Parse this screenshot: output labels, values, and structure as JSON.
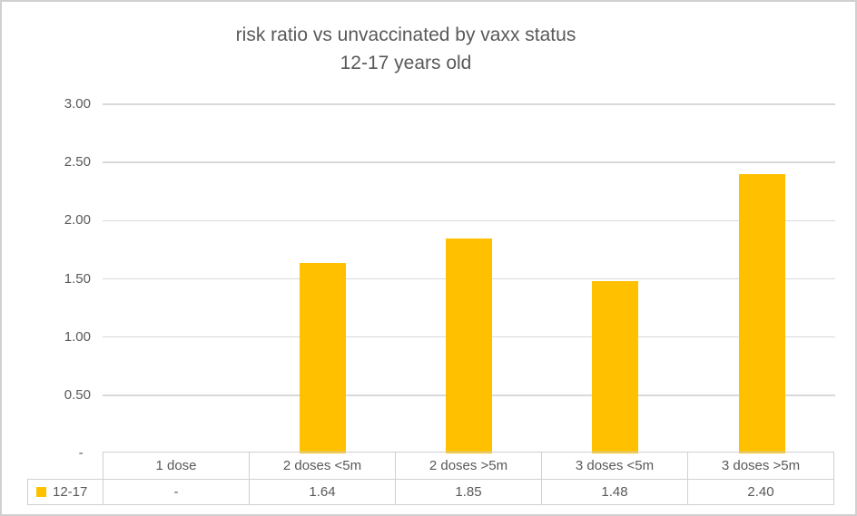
{
  "chart_data": {
    "type": "bar",
    "title": "risk ratio vs unvaccinated by vaxx status",
    "subtitle": "12-17 years old",
    "categories": [
      "1 dose",
      "2 doses <5m",
      "2 doses >5m",
      "3 doses <5m",
      "3 doses >5m"
    ],
    "series": [
      {
        "name": "12-17",
        "color": "#FFC000",
        "values": [
          null,
          1.64,
          1.85,
          1.48,
          2.4
        ],
        "display_values": [
          "-",
          "1.64",
          "1.85",
          "1.48",
          "2.40"
        ]
      }
    ],
    "ylim": [
      0,
      3.0
    ],
    "ytick_step": 0.5,
    "yticks": [
      {
        "value": 0,
        "label": "-  "
      },
      {
        "value": 0.5,
        "label": "0.50"
      },
      {
        "value": 1,
        "label": "1.00"
      },
      {
        "value": 1.5,
        "label": "1.50"
      },
      {
        "value": 2,
        "label": "2.00"
      },
      {
        "value": 2.5,
        "label": "2.50"
      },
      {
        "value": 3,
        "label": "3.00"
      }
    ],
    "grid": true,
    "legend_position": "bottom-table",
    "xlabel": "",
    "ylabel": ""
  },
  "colors": {
    "bar": "#FFC000",
    "text": "#595959",
    "gridline": "#D9D9D9",
    "table_border": "#D0D0D0",
    "frame_border": "#D0D0D0",
    "background": "#FFFFFF"
  }
}
